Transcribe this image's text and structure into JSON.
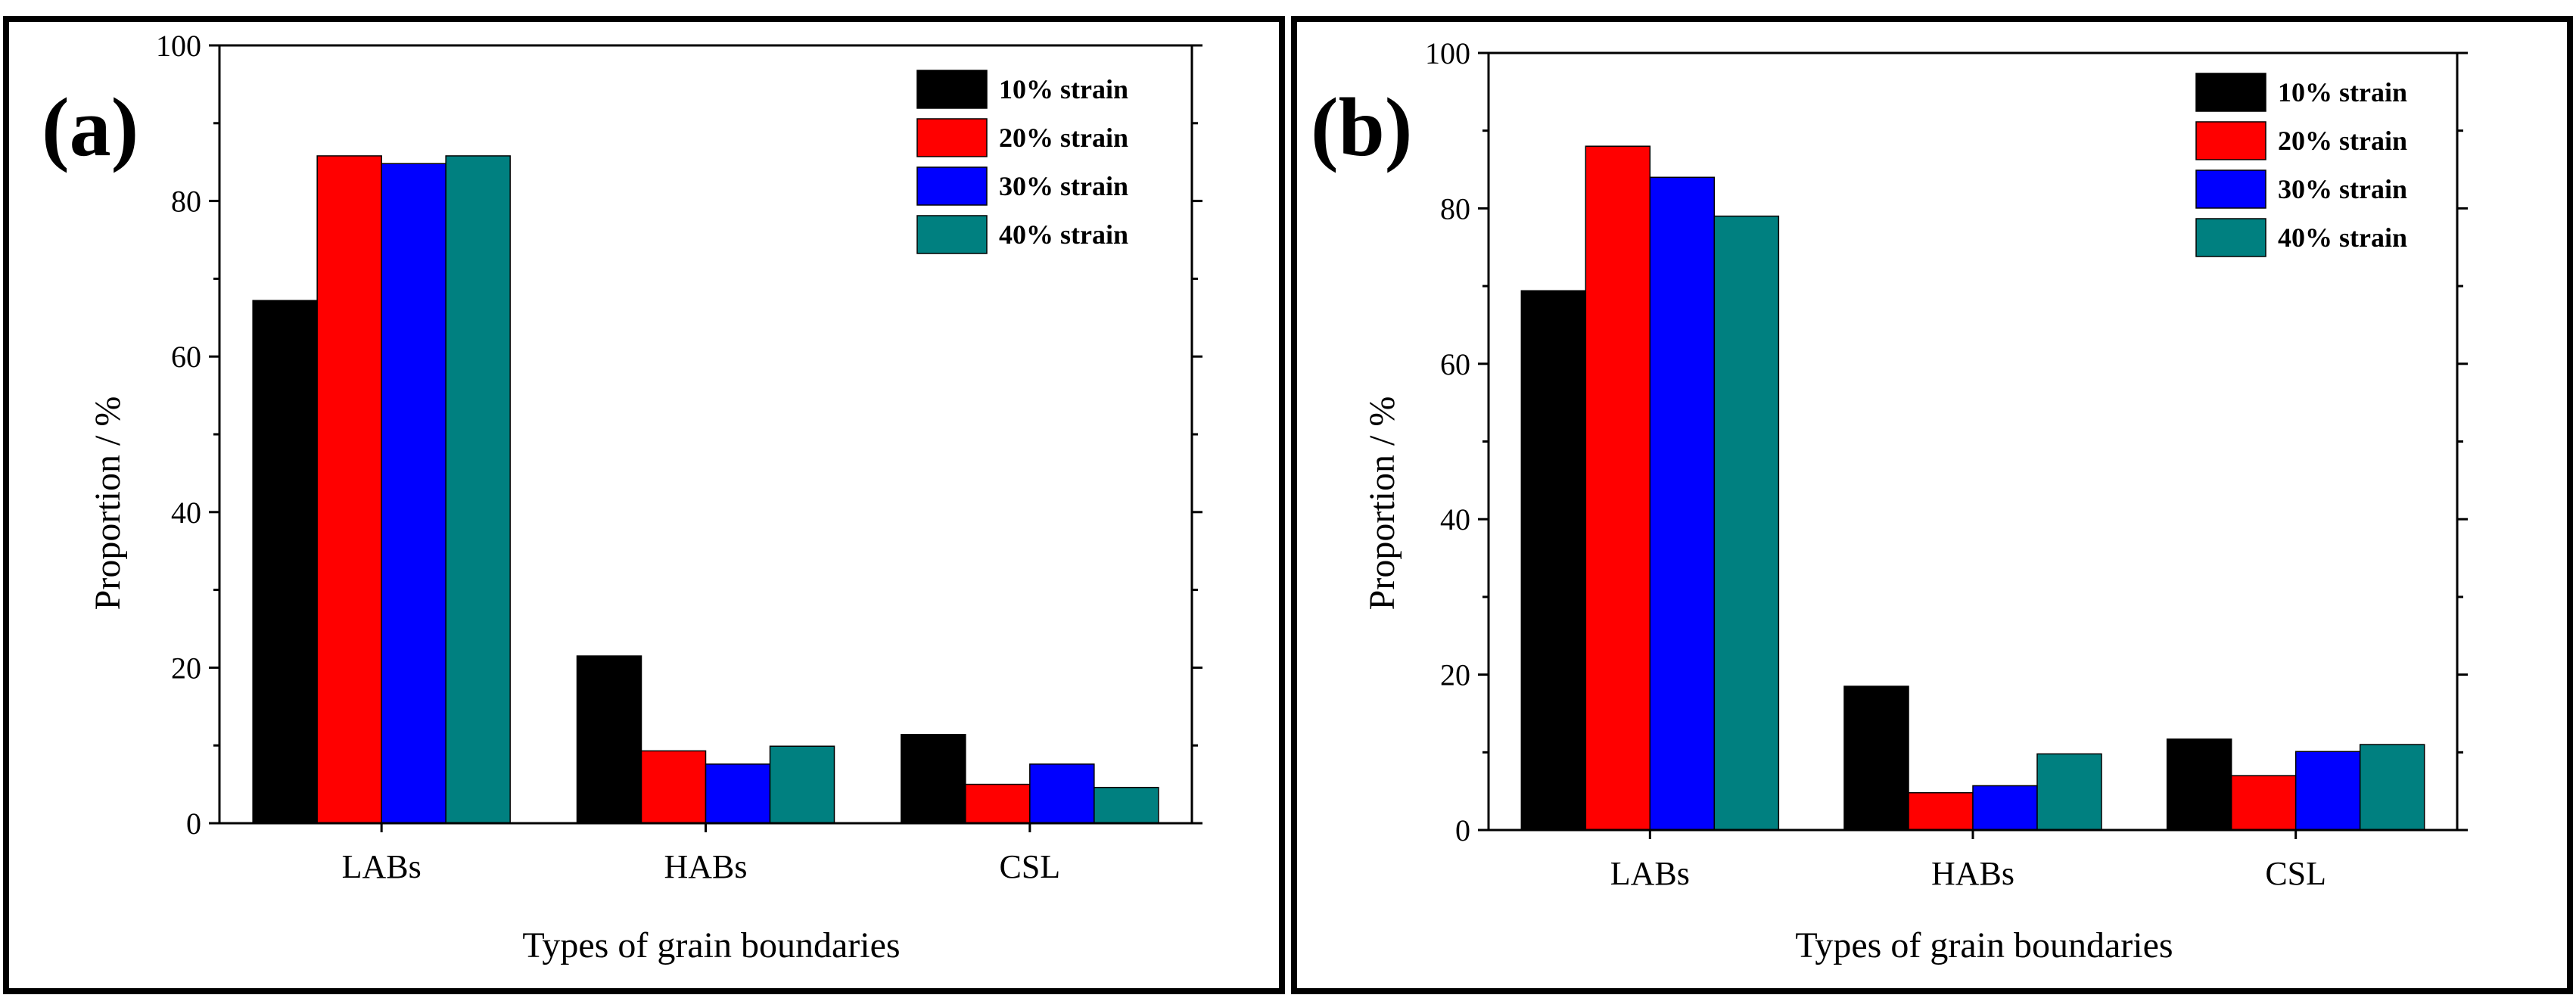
{
  "chart_data": [
    {
      "type": "bar",
      "panel_label": "(a)",
      "categories": [
        "LABs",
        "HABs",
        "CSL"
      ],
      "series": [
        {
          "name": "10% strain",
          "color": "#000000",
          "values": [
            67.2,
            21.5,
            11.4
          ]
        },
        {
          "name": "20% strain",
          "color": "#ff0000",
          "values": [
            85.8,
            9.3,
            5.0
          ]
        },
        {
          "name": "30% strain",
          "color": "#0000ff",
          "values": [
            84.8,
            7.6,
            7.6
          ]
        },
        {
          "name": "40% strain",
          "color": "#008080",
          "values": [
            85.8,
            9.9,
            4.6
          ]
        }
      ],
      "xlabel": "Types of grain boundaries",
      "ylabel": "Proportion / %",
      "ylim": [
        0,
        100
      ],
      "yticks": [
        "0",
        "20",
        "40",
        "60",
        "80",
        "100"
      ],
      "legend_position": "top-right"
    },
    {
      "type": "bar",
      "panel_label": "(b)",
      "categories": [
        "LABs",
        "HABs",
        "CSL"
      ],
      "series": [
        {
          "name": "10% strain",
          "color": "#000000",
          "values": [
            69.4,
            18.5,
            11.7
          ]
        },
        {
          "name": "20% strain",
          "color": "#ff0000",
          "values": [
            88.0,
            4.8,
            7.0
          ]
        },
        {
          "name": "30% strain",
          "color": "#0000ff",
          "values": [
            84.0,
            5.7,
            10.1
          ]
        },
        {
          "name": "40% strain",
          "color": "#008080",
          "values": [
            79.0,
            9.8,
            11.0
          ]
        }
      ],
      "xlabel": "Types of grain boundaries",
      "ylabel": "Proportion / %",
      "ylim": [
        0,
        100
      ],
      "yticks": [
        "0",
        "20",
        "40",
        "60",
        "80",
        "100"
      ],
      "legend_position": "top-right"
    }
  ]
}
